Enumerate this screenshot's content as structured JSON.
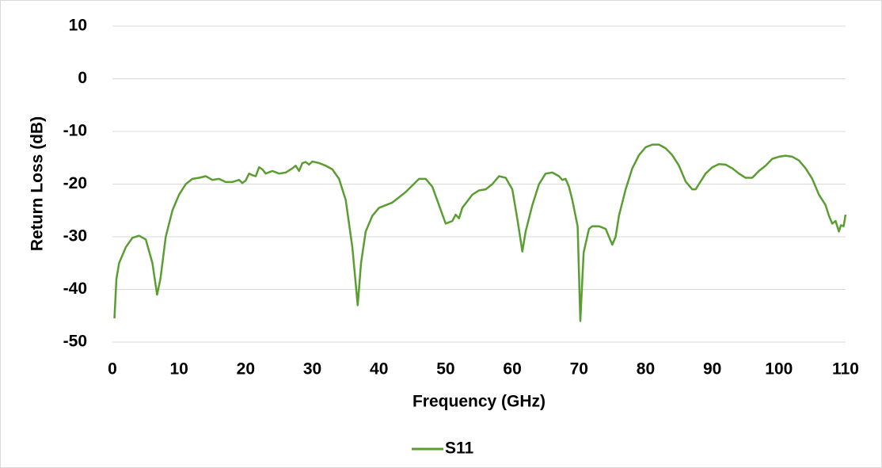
{
  "chart_data": {
    "type": "line",
    "xlabel": "Frequency (GHz)",
    "ylabel": "Return Loss (dB)",
    "xlim": [
      0,
      110
    ],
    "xticks": [
      0,
      10,
      20,
      30,
      40,
      50,
      60,
      70,
      80,
      90,
      100,
      110
    ],
    "ylim": [
      -50,
      10
    ],
    "yticks": [
      10,
      0,
      -10,
      -20,
      -30,
      -40,
      -50
    ],
    "grid": true,
    "legend": "bottom",
    "x": [
      0.3,
      0.6,
      1,
      2,
      3,
      4,
      5,
      6,
      6.7,
      7.2,
      8,
      9,
      10,
      11,
      12,
      13,
      14,
      15,
      16,
      17,
      18,
      19,
      19.5,
      20,
      20.5,
      21,
      21.5,
      22,
      22.5,
      23,
      24,
      25,
      26,
      27,
      27.5,
      28,
      28.5,
      29,
      29.5,
      30,
      31,
      32,
      33,
      34,
      35,
      36,
      36.8,
      37.3,
      38,
      39,
      40,
      42,
      44,
      46,
      47,
      48,
      49,
      50,
      51,
      51.5,
      52,
      52.5,
      54,
      55,
      56,
      57,
      58,
      59,
      60,
      60.8,
      61.5,
      62,
      63,
      64,
      65,
      66,
      67,
      67.5,
      68,
      68.5,
      69,
      69.8,
      70.2,
      70.7,
      71.5,
      72,
      73,
      74,
      75,
      75.5,
      76,
      77,
      78,
      79,
      80,
      81,
      82,
      83,
      84,
      85,
      86,
      87,
      87.5,
      88,
      89,
      90,
      91,
      92,
      93,
      94,
      95,
      96,
      97,
      98,
      99,
      100,
      101,
      102,
      103,
      104,
      105,
      106,
      107,
      107.5,
      108,
      108.5,
      109,
      109.3,
      109.7,
      110
    ],
    "series": [
      {
        "name": "S11",
        "color": "#5a9e32",
        "values": [
          -45.5,
          -38,
          -35,
          -32,
          -30.2,
          -29.8,
          -30.5,
          -35,
          -41,
          -38,
          -30,
          -25,
          -22,
          -20,
          -19,
          -18.8,
          -18.5,
          -19.2,
          -19,
          -19.6,
          -19.6,
          -19.2,
          -19.8,
          -19.3,
          -18,
          -18.3,
          -18.5,
          -16.8,
          -17.2,
          -18,
          -17.5,
          -18,
          -17.8,
          -17,
          -16.5,
          -17.5,
          -16,
          -15.8,
          -16.3,
          -15.7,
          -16,
          -16.5,
          -17.2,
          -19,
          -23,
          -32,
          -43,
          -35,
          -29,
          -26,
          -24.5,
          -23.5,
          -21.5,
          -19,
          -19,
          -20.5,
          -24,
          -27.5,
          -27,
          -25.8,
          -26.5,
          -24.5,
          -22,
          -21.2,
          -21,
          -20,
          -18.5,
          -18.8,
          -21,
          -27,
          -32.8,
          -29,
          -24,
          -20,
          -18,
          -17.8,
          -18.5,
          -19.2,
          -19,
          -20.5,
          -23,
          -28,
          -46,
          -33,
          -28.5,
          -28,
          -28,
          -28.5,
          -31.5,
          -30,
          -26,
          -21,
          -17,
          -14.5,
          -13,
          -12.5,
          -12.5,
          -13.2,
          -14.5,
          -16.5,
          -19.5,
          -21,
          -21,
          -20,
          -18,
          -16.8,
          -16.2,
          -16.3,
          -17,
          -18,
          -18.8,
          -18.8,
          -17.5,
          -16.5,
          -15.2,
          -14.8,
          -14.6,
          -14.8,
          -15.5,
          -17,
          -19,
          -22,
          -24,
          -26,
          -27.5,
          -27,
          -29,
          -27.8,
          -28,
          -25.8
        ]
      }
    ]
  }
}
